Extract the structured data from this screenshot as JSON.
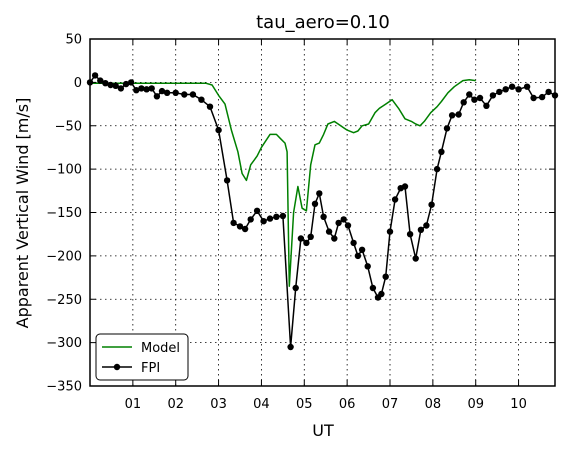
{
  "chart_data": {
    "type": "line",
    "title": "tau_aero=0.10",
    "xlabel": "UT",
    "ylabel": "Apparent Vertical Wind [m/s]",
    "xlim": [
      0.0,
      10.85
    ],
    "ylim": [
      -350,
      50
    ],
    "x_ticks": [
      1,
      2,
      3,
      4,
      5,
      6,
      7,
      8,
      9,
      10
    ],
    "x_tick_labels": [
      "01",
      "02",
      "03",
      "04",
      "05",
      "06",
      "07",
      "08",
      "09",
      "10"
    ],
    "y_ticks": [
      50,
      0,
      -50,
      -100,
      -150,
      -200,
      -250,
      -300,
      -350
    ],
    "y_tick_labels": [
      "50",
      "0",
      "−50",
      "−100",
      "−150",
      "−200",
      "−250",
      "−300",
      "−350"
    ],
    "grid": true,
    "legend_position": "lower-left",
    "series": [
      {
        "name": "Model",
        "color": "#008000",
        "marker": "none",
        "x": [
          0.0,
          0.5,
          1.0,
          1.5,
          2.0,
          2.5,
          2.7,
          2.85,
          3.0,
          3.15,
          3.3,
          3.45,
          3.55,
          3.65,
          3.75,
          3.9,
          4.0,
          4.2,
          4.35,
          4.45,
          4.55,
          4.6,
          4.65,
          4.75,
          4.85,
          4.95,
          5.05,
          5.15,
          5.25,
          5.35,
          5.45,
          5.55,
          5.7,
          5.85,
          6.0,
          6.15,
          6.25,
          6.35,
          6.5,
          6.65,
          6.75,
          6.9,
          7.05,
          7.2,
          7.35,
          7.5,
          7.6,
          7.7,
          7.8,
          7.95,
          8.1,
          8.2,
          8.35,
          8.5,
          8.7,
          8.85,
          9.0
        ],
        "y": [
          -1,
          -1,
          -1,
          -1,
          -1,
          -1,
          -1,
          -3,
          -15,
          -25,
          -55,
          -80,
          -105,
          -113,
          -95,
          -85,
          -75,
          -60,
          -60,
          -65,
          -70,
          -80,
          -235,
          -150,
          -120,
          -145,
          -148,
          -95,
          -72,
          -70,
          -60,
          -48,
          -45,
          -50,
          -55,
          -58,
          -56,
          -50,
          -48,
          -35,
          -30,
          -25,
          -20,
          -30,
          -42,
          -45,
          -48,
          -50,
          -45,
          -35,
          -28,
          -22,
          -12,
          -5,
          2,
          3,
          2
        ]
      },
      {
        "name": "FPI",
        "color": "#000000",
        "marker": "circle",
        "x": [
          0.0,
          0.12,
          0.24,
          0.36,
          0.48,
          0.6,
          0.72,
          0.84,
          0.96,
          1.08,
          1.2,
          1.32,
          1.44,
          1.56,
          1.68,
          1.8,
          2.0,
          2.2,
          2.4,
          2.6,
          2.8,
          3.0,
          3.2,
          3.35,
          3.5,
          3.62,
          3.75,
          3.9,
          4.05,
          4.2,
          4.35,
          4.5,
          4.68,
          4.8,
          4.92,
          5.05,
          5.15,
          5.25,
          5.35,
          5.45,
          5.58,
          5.7,
          5.8,
          5.92,
          6.02,
          6.15,
          6.25,
          6.35,
          6.48,
          6.6,
          6.72,
          6.8,
          6.9,
          7.0,
          7.12,
          7.25,
          7.35,
          7.47,
          7.6,
          7.72,
          7.85,
          7.97,
          8.1,
          8.2,
          8.33,
          8.45,
          8.6,
          8.72,
          8.85,
          8.97,
          9.1,
          9.25,
          9.4,
          9.55,
          9.7,
          9.85,
          10.0,
          10.2,
          10.35,
          10.55,
          10.7,
          10.85
        ],
        "y": [
          0,
          8,
          2,
          -1,
          -3,
          -4,
          -7,
          -2,
          0,
          -9,
          -7,
          -8,
          -7,
          -16,
          -10,
          -12,
          -12,
          -14,
          -14,
          -20,
          -28,
          -55,
          -113,
          -162,
          -166,
          -169,
          -158,
          -148,
          -160,
          -157,
          -155,
          -154,
          -305,
          -237,
          -180,
          -185,
          -178,
          -140,
          -128,
          -155,
          -172,
          -180,
          -162,
          -158,
          -165,
          -185,
          -200,
          -193,
          -212,
          -237,
          -248,
          -244,
          -224,
          -172,
          -135,
          -122,
          -120,
          -175,
          -203,
          -170,
          -165,
          -141,
          -100,
          -80,
          -53,
          -38,
          -37,
          -23,
          -14,
          -20,
          -18,
          -27,
          -15,
          -11,
          -8,
          -5,
          -8,
          -5,
          -18,
          -17,
          -11,
          -15
        ]
      }
    ]
  }
}
